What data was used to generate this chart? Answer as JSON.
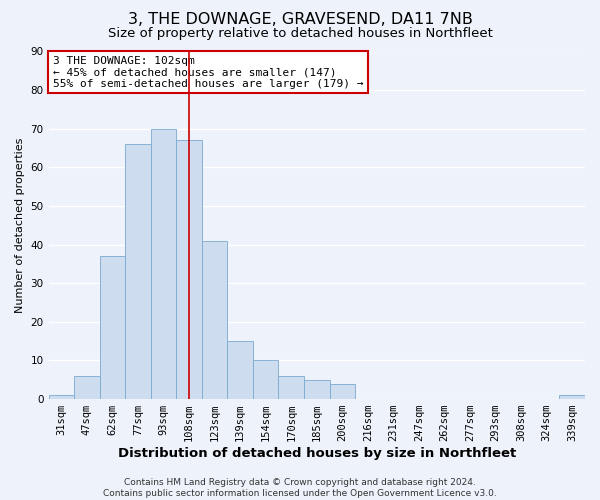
{
  "title": "3, THE DOWNAGE, GRAVESEND, DA11 7NB",
  "subtitle": "Size of property relative to detached houses in Northfleet",
  "xlabel": "Distribution of detached houses by size in Northfleet",
  "ylabel": "Number of detached properties",
  "bar_labels": [
    "31sqm",
    "47sqm",
    "62sqm",
    "77sqm",
    "93sqm",
    "108sqm",
    "123sqm",
    "139sqm",
    "154sqm",
    "170sqm",
    "185sqm",
    "200sqm",
    "216sqm",
    "231sqm",
    "247sqm",
    "262sqm",
    "277sqm",
    "293sqm",
    "308sqm",
    "324sqm",
    "339sqm"
  ],
  "bar_values": [
    1,
    6,
    37,
    66,
    70,
    67,
    41,
    15,
    10,
    6,
    5,
    4,
    0,
    0,
    0,
    0,
    0,
    0,
    0,
    0,
    1
  ],
  "bar_color": "#cddcee",
  "bar_edge_color": "#7aaad0",
  "vline_index": 5,
  "annotation_title": "3 THE DOWNAGE: 102sqm",
  "annotation_line1": "← 45% of detached houses are smaller (147)",
  "annotation_line2": "55% of semi-detached houses are larger (179) →",
  "annotation_box_color": "#ffffff",
  "annotation_box_edge": "#cc0000",
  "vline_color": "#cc0000",
  "ylim": [
    0,
    90
  ],
  "yticks": [
    0,
    10,
    20,
    30,
    40,
    50,
    60,
    70,
    80,
    90
  ],
  "footer_line1": "Contains HM Land Registry data © Crown copyright and database right 2024.",
  "footer_line2": "Contains public sector information licensed under the Open Government Licence v3.0.",
  "background_color": "#eef2fa",
  "grid_color": "#ffffff",
  "title_fontsize": 11.5,
  "subtitle_fontsize": 9.5,
  "xlabel_fontsize": 9.5,
  "ylabel_fontsize": 8,
  "tick_fontsize": 7.5,
  "annotation_fontsize": 8,
  "footer_fontsize": 6.5
}
